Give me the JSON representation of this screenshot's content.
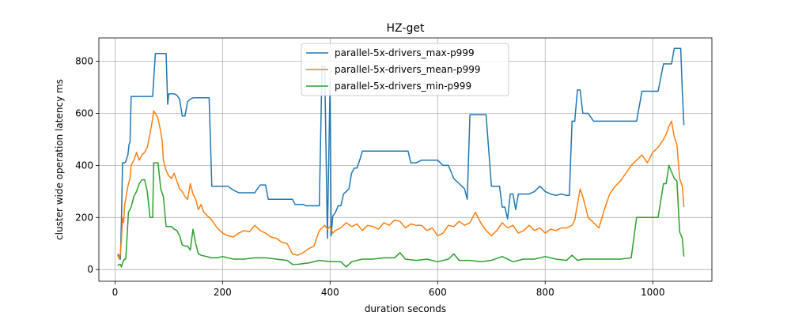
{
  "chart_data": {
    "type": "line",
    "title": "HZ-get",
    "xlabel": "duration seconds",
    "ylabel": "cluster wide operation latency ms",
    "xlim": [
      -30,
      1110
    ],
    "ylim": [
      -45,
      890
    ],
    "xticks": [
      0,
      200,
      400,
      600,
      800,
      1000
    ],
    "yticks": [
      0,
      200,
      400,
      600,
      800
    ],
    "grid": true,
    "legend_position": "top-center",
    "series": [
      {
        "name": "parallel-5x-drivers_max-p999",
        "color": "#1f77b4",
        "x": [
          5,
          8,
          10,
          12,
          14,
          16,
          18,
          20,
          22,
          24,
          26,
          28,
          30,
          40,
          50,
          60,
          70,
          75,
          80,
          85,
          90,
          95,
          98,
          100,
          105,
          110,
          115,
          120,
          125,
          130,
          135,
          140,
          145,
          150,
          155,
          160,
          165,
          170,
          175,
          180,
          190,
          200,
          210,
          220,
          230,
          240,
          250,
          260,
          270,
          275,
          280,
          285,
          290,
          300,
          310,
          320,
          330,
          335,
          340,
          345,
          350,
          355,
          360,
          365,
          370,
          375,
          380,
          385,
          390,
          395,
          400,
          402,
          405,
          410,
          415,
          420,
          425,
          430,
          435,
          440,
          445,
          450,
          455,
          460,
          470,
          480,
          490,
          500,
          510,
          520,
          530,
          540,
          545,
          550,
          555,
          560,
          570,
          580,
          590,
          600,
          610,
          620,
          630,
          640,
          650,
          655,
          660,
          665,
          670,
          680,
          690,
          700,
          705,
          710,
          715,
          720,
          725,
          730,
          735,
          740,
          745,
          750,
          755,
          760,
          765,
          770,
          780,
          790,
          800,
          810,
          820,
          830,
          840,
          845,
          850,
          855,
          860,
          865,
          870,
          875,
          880,
          890,
          900,
          920,
          940,
          960,
          965,
          970,
          980,
          990,
          1000,
          1005,
          1010,
          1020,
          1030,
          1035,
          1040,
          1045,
          1050,
          1052,
          1055,
          1058
        ],
        "y": [
          60,
          50,
          40,
          200,
          410,
          410,
          410,
          415,
          430,
          440,
          480,
          490,
          665,
          665,
          665,
          665,
          665,
          830,
          830,
          830,
          830,
          830,
          635,
          675,
          675,
          675,
          670,
          655,
          590,
          590,
          645,
          655,
          660,
          660,
          660,
          660,
          660,
          660,
          660,
          320,
          320,
          320,
          320,
          305,
          295,
          295,
          295,
          295,
          325,
          325,
          325,
          270,
          270,
          270,
          270,
          270,
          270,
          250,
          250,
          250,
          250,
          245,
          245,
          245,
          245,
          245,
          245,
          780,
          780,
          120,
          720,
          130,
          205,
          220,
          245,
          245,
          290,
          300,
          310,
          370,
          390,
          390,
          420,
          455,
          455,
          455,
          455,
          455,
          455,
          455,
          455,
          455,
          455,
          410,
          410,
          410,
          420,
          420,
          420,
          420,
          400,
          400,
          350,
          330,
          310,
          270,
          595,
          595,
          595,
          595,
          595,
          320,
          320,
          320,
          320,
          240,
          240,
          195,
          290,
          290,
          230,
          290,
          290,
          290,
          290,
          290,
          300,
          320,
          300,
          290,
          285,
          290,
          285,
          285,
          570,
          570,
          690,
          690,
          600,
          600,
          600,
          570,
          570,
          570,
          570,
          570,
          570,
          570,
          685,
          685,
          685,
          685,
          685,
          790,
          790,
          790,
          850,
          850,
          850,
          850,
          685,
          555
        ]
      },
      {
        "name": "parallel-5x-drivers_mean-p999",
        "color": "#ff7f0e",
        "x": [
          5,
          8,
          10,
          12,
          14,
          16,
          18,
          20,
          22,
          25,
          28,
          30,
          35,
          40,
          45,
          50,
          55,
          60,
          65,
          70,
          72,
          75,
          78,
          80,
          85,
          88,
          90,
          95,
          100,
          105,
          110,
          115,
          120,
          125,
          130,
          135,
          140,
          145,
          150,
          155,
          160,
          165,
          170,
          175,
          180,
          185,
          190,
          195,
          200,
          210,
          220,
          230,
          240,
          250,
          260,
          270,
          280,
          290,
          300,
          310,
          320,
          330,
          340,
          350,
          360,
          370,
          380,
          385,
          390,
          395,
          400,
          405,
          410,
          420,
          430,
          440,
          450,
          460,
          470,
          480,
          490,
          500,
          510,
          520,
          530,
          540,
          550,
          560,
          570,
          580,
          590,
          600,
          610,
          620,
          630,
          640,
          650,
          660,
          670,
          680,
          690,
          700,
          710,
          720,
          730,
          740,
          750,
          760,
          770,
          780,
          790,
          800,
          810,
          820,
          830,
          840,
          850,
          855,
          860,
          865,
          870,
          880,
          890,
          900,
          910,
          920,
          930,
          940,
          950,
          960,
          970,
          980,
          990,
          1000,
          1010,
          1020,
          1025,
          1030,
          1035,
          1040,
          1045,
          1050,
          1055,
          1058
        ],
        "y": [
          55,
          40,
          60,
          120,
          200,
          180,
          250,
          270,
          300,
          330,
          350,
          400,
          420,
          450,
          420,
          440,
          450,
          470,
          520,
          580,
          610,
          600,
          590,
          580,
          530,
          490,
          420,
          380,
          360,
          350,
          370,
          340,
          310,
          300,
          280,
          270,
          330,
          290,
          270,
          230,
          250,
          220,
          210,
          200,
          190,
          175,
          160,
          150,
          140,
          130,
          125,
          140,
          150,
          145,
          170,
          150,
          140,
          125,
          120,
          105,
          100,
          60,
          55,
          65,
          80,
          90,
          150,
          160,
          170,
          155,
          165,
          140,
          150,
          160,
          180,
          165,
          175,
          150,
          170,
          165,
          155,
          180,
          170,
          190,
          185,
          160,
          175,
          170,
          170,
          150,
          160,
          130,
          140,
          170,
          165,
          185,
          170,
          180,
          220,
          180,
          150,
          130,
          150,
          180,
          160,
          170,
          140,
          150,
          170,
          150,
          160,
          140,
          155,
          150,
          160,
          160,
          170,
          190,
          250,
          310,
          280,
          200,
          180,
          160,
          230,
          290,
          320,
          340,
          370,
          400,
          420,
          440,
          410,
          450,
          470,
          500,
          520,
          550,
          570,
          510,
          480,
          350,
          320,
          240
        ]
      },
      {
        "name": "parallel-5x-drivers_min-p999",
        "color": "#2ca02c",
        "x": [
          5,
          8,
          10,
          12,
          14,
          16,
          18,
          20,
          25,
          30,
          35,
          40,
          45,
          50,
          55,
          60,
          65,
          70,
          72,
          75,
          78,
          80,
          85,
          90,
          95,
          100,
          105,
          110,
          115,
          120,
          125,
          130,
          135,
          140,
          145,
          150,
          155,
          160,
          170,
          180,
          190,
          200,
          220,
          240,
          260,
          280,
          300,
          320,
          330,
          340,
          360,
          380,
          400,
          420,
          430,
          440,
          460,
          480,
          500,
          520,
          530,
          540,
          560,
          580,
          600,
          620,
          630,
          640,
          660,
          680,
          700,
          720,
          740,
          760,
          780,
          800,
          820,
          840,
          850,
          860,
          870,
          880,
          900,
          920,
          940,
          960,
          970,
          980,
          990,
          1000,
          1010,
          1020,
          1025,
          1030,
          1040,
          1045,
          1050,
          1055,
          1058
        ],
        "y": [
          15,
          20,
          20,
          10,
          25,
          35,
          40,
          40,
          220,
          240,
          280,
          300,
          330,
          345,
          345,
          300,
          200,
          200,
          410,
          410,
          410,
          410,
          310,
          280,
          165,
          165,
          165,
          155,
          150,
          130,
          95,
          90,
          90,
          75,
          155,
          100,
          60,
          55,
          50,
          45,
          45,
          50,
          40,
          40,
          45,
          45,
          40,
          35,
          20,
          20,
          25,
          35,
          30,
          30,
          10,
          30,
          40,
          40,
          45,
          45,
          65,
          40,
          35,
          40,
          30,
          40,
          60,
          35,
          35,
          30,
          35,
          50,
          30,
          40,
          40,
          50,
          40,
          35,
          55,
          35,
          40,
          40,
          40,
          40,
          40,
          45,
          200,
          200,
          200,
          200,
          200,
          330,
          330,
          400,
          350,
          340,
          145,
          120,
          50
        ]
      }
    ]
  }
}
